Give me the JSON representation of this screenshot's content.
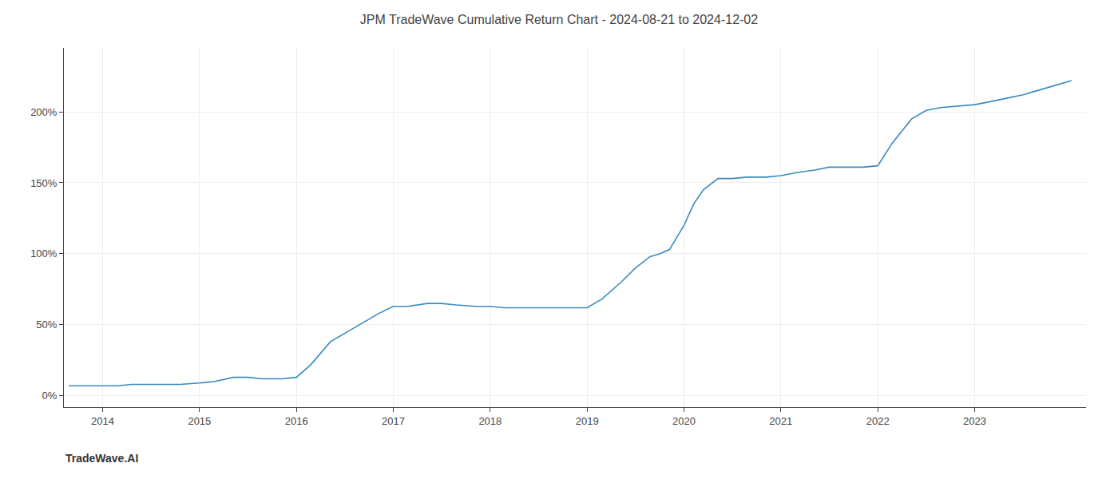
{
  "chart_data": {
    "type": "line",
    "title": "JPM TradeWave Cumulative Return Chart - 2024-08-21 to 2024-12-02",
    "annotations": [
      "TradeWave.AI"
    ],
    "color": "#3a8abf",
    "x": [
      2013.65,
      2014.0,
      2014.15,
      2014.3,
      2014.5,
      2014.65,
      2014.8,
      2015.0,
      2015.15,
      2015.35,
      2015.5,
      2015.65,
      2015.85,
      2016.0,
      2016.15,
      2016.35,
      2016.5,
      2016.65,
      2016.85,
      2017.0,
      2017.15,
      2017.35,
      2017.5,
      2017.65,
      2017.85,
      2018.0,
      2018.15,
      2018.35,
      2018.5,
      2018.65,
      2018.85,
      2019.0,
      2019.15,
      2019.35,
      2019.5,
      2019.65,
      2019.75,
      2019.85,
      2020.0,
      2020.1,
      2020.2,
      2020.35,
      2020.5,
      2020.65,
      2020.85,
      2021.0,
      2021.15,
      2021.35,
      2021.5,
      2021.65,
      2021.85,
      2022.0,
      2022.15,
      2022.35,
      2022.5,
      2022.65,
      2022.85,
      2023.0,
      2023.15,
      2023.35,
      2023.5,
      2023.65,
      2023.85,
      2024.0
    ],
    "values": [
      7,
      7,
      7,
      8,
      8,
      8,
      8,
      9,
      10,
      13,
      13,
      12,
      12,
      13,
      22,
      38,
      44,
      50,
      58,
      63,
      63,
      65,
      65,
      64,
      63,
      63,
      62,
      62,
      62,
      62,
      62,
      62,
      68,
      80,
      90,
      98,
      100,
      103,
      120,
      135,
      145,
      153,
      153,
      154,
      154,
      155,
      157,
      159,
      161,
      161,
      161,
      162,
      178,
      195,
      201,
      203,
      204,
      205,
      207,
      210,
      212,
      215,
      219,
      222
    ],
    "xlim": [
      2013.6,
      2024.15
    ],
    "ylim": [
      -8,
      245
    ],
    "xticks": [
      2014,
      2015,
      2016,
      2017,
      2018,
      2019,
      2020,
      2021,
      2022,
      2023
    ],
    "yticks": [
      {
        "value": 0,
        "label": "0%"
      },
      {
        "value": 50,
        "label": "50%"
      },
      {
        "value": 100,
        "label": "100%"
      },
      {
        "value": 150,
        "label": "150%"
      },
      {
        "value": 200,
        "label": "200%"
      }
    ],
    "grid": true
  }
}
